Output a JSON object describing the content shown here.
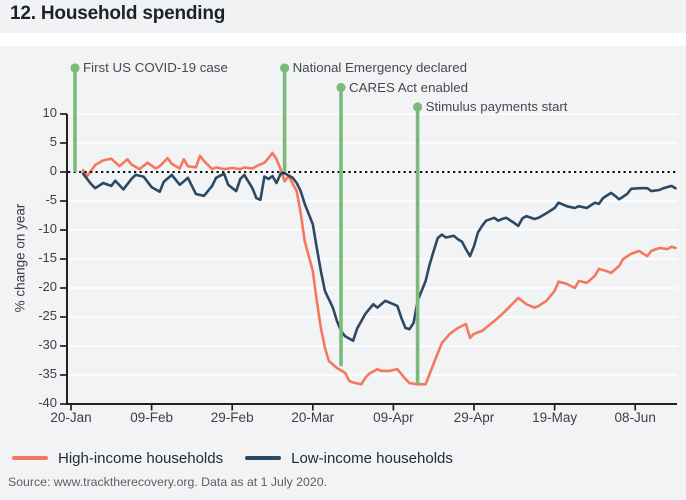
{
  "header": {
    "title": "12. Household spending"
  },
  "footer": {
    "source": "Source: www.tracktherecovery.org. Data as at 1 July 2020."
  },
  "legend": [
    {
      "label": "High-income households",
      "color": "#f4795c"
    },
    {
      "label": "Low-income households",
      "color": "#2c4964"
    }
  ],
  "chart_data": {
    "type": "line",
    "title": "12. Household spending",
    "xlabel": "",
    "ylabel": "% change on year",
    "ylim": [
      -40,
      12
    ],
    "grid": "horizontal-white-on-grey",
    "zero_line": "dotted-black",
    "legend_position": "bottom-left",
    "y_ticks": [
      10,
      5,
      0,
      -5,
      -10,
      -15,
      -20,
      -25,
      -30,
      -35,
      -40
    ],
    "x_axis": {
      "start_date": "2020-01-20",
      "end_day": 151,
      "ticks": [
        {
          "day": 0,
          "label": "20-Jan"
        },
        {
          "day": 20,
          "label": "09-Feb"
        },
        {
          "day": 40,
          "label": "29-Feb"
        },
        {
          "day": 60,
          "label": "20-Mar"
        },
        {
          "day": 80,
          "label": "09-Apr"
        },
        {
          "day": 100,
          "label": "29-Apr"
        },
        {
          "day": 120,
          "label": "19-May"
        },
        {
          "day": 140,
          "label": "08-Jun"
        }
      ]
    },
    "event_color": "#7cba7c",
    "events": [
      {
        "label": "First US COVID-19 case",
        "date": "2020-01-21",
        "row": 0,
        "end_value": 0
      },
      {
        "label": "National Emergency declared",
        "date": "2020-03-13",
        "row": 0,
        "end_value": 0
      },
      {
        "label": "CARES Act enabled",
        "date": "2020-03-27",
        "row": 1,
        "end_value": -33.5
      },
      {
        "label": "Stimulus payments start",
        "date": "2020-04-15",
        "row": 2,
        "end_value": -36.6
      }
    ],
    "series": [
      {
        "name": "High-income households",
        "color": "#f4795c",
        "points": [
          [
            3,
            0.3
          ],
          [
            4,
            -0.7
          ],
          [
            6,
            1.2
          ],
          [
            8,
            2.0
          ],
          [
            10,
            2.3
          ],
          [
            12,
            1.0
          ],
          [
            14,
            2.2
          ],
          [
            15,
            1.3
          ],
          [
            17,
            0.5
          ],
          [
            19,
            1.6
          ],
          [
            21,
            0.6
          ],
          [
            22,
            1.0
          ],
          [
            24,
            2.4
          ],
          [
            25,
            1.4
          ],
          [
            27,
            0.6
          ],
          [
            28,
            2.2
          ],
          [
            29,
            1.0
          ],
          [
            31,
            0.8
          ],
          [
            32,
            2.8
          ],
          [
            33,
            1.9
          ],
          [
            35,
            0.5
          ],
          [
            36,
            0.8
          ],
          [
            38,
            0.5
          ],
          [
            40,
            0.7
          ],
          [
            42,
            0.5
          ],
          [
            43,
            0.8
          ],
          [
            45,
            0.6
          ],
          [
            46,
            1.0
          ],
          [
            48,
            1.6
          ],
          [
            49,
            2.4
          ],
          [
            50,
            3.3
          ],
          [
            51,
            2.2
          ],
          [
            52,
            0.5
          ],
          [
            53,
            -1.6
          ],
          [
            54,
            -0.7
          ],
          [
            56,
            -3.3
          ],
          [
            57,
            -7.1
          ],
          [
            58,
            -11.9
          ],
          [
            60,
            -17.1
          ],
          [
            61,
            -22.2
          ],
          [
            62,
            -26.9
          ],
          [
            63,
            -30.3
          ],
          [
            64,
            -32.6
          ],
          [
            66,
            -33.8
          ],
          [
            68,
            -34.6
          ],
          [
            69,
            -36.0
          ],
          [
            70,
            -36.3
          ],
          [
            72,
            -36.6
          ],
          [
            73,
            -35.5
          ],
          [
            74,
            -34.8
          ],
          [
            76,
            -34.0
          ],
          [
            77,
            -34.3
          ],
          [
            79,
            -34.3
          ],
          [
            81,
            -34.0
          ],
          [
            83,
            -35.7
          ],
          [
            84,
            -36.4
          ],
          [
            86,
            -36.6
          ],
          [
            88,
            -36.6
          ],
          [
            90,
            -33.0
          ],
          [
            92,
            -29.5
          ],
          [
            94,
            -27.9
          ],
          [
            96,
            -26.9
          ],
          [
            98,
            -26.2
          ],
          [
            99,
            -28.6
          ],
          [
            100,
            -27.9
          ],
          [
            102,
            -27.4
          ],
          [
            105,
            -25.7
          ],
          [
            107,
            -24.5
          ],
          [
            109,
            -23.1
          ],
          [
            111,
            -21.7
          ],
          [
            113,
            -22.8
          ],
          [
            115,
            -23.4
          ],
          [
            116,
            -23.1
          ],
          [
            118,
            -22.2
          ],
          [
            120,
            -20.5
          ],
          [
            121,
            -18.9
          ],
          [
            123,
            -19.3
          ],
          [
            125,
            -20.0
          ],
          [
            126,
            -18.8
          ],
          [
            128,
            -19.1
          ],
          [
            130,
            -17.9
          ],
          [
            131,
            -16.7
          ],
          [
            133,
            -17.1
          ],
          [
            134,
            -17.4
          ],
          [
            136,
            -16.2
          ],
          [
            137,
            -15.0
          ],
          [
            139,
            -14.1
          ],
          [
            141,
            -13.6
          ],
          [
            142,
            -14.1
          ],
          [
            143,
            -14.5
          ],
          [
            144,
            -13.6
          ],
          [
            146,
            -13.1
          ],
          [
            148,
            -13.3
          ],
          [
            149,
            -12.9
          ],
          [
            150,
            -13.1
          ]
        ]
      },
      {
        "name": "Low-income households",
        "color": "#2c4964",
        "points": [
          [
            3,
            -0.3
          ],
          [
            5,
            -2.1
          ],
          [
            6,
            -2.8
          ],
          [
            8,
            -1.9
          ],
          [
            10,
            -2.4
          ],
          [
            11,
            -1.5
          ],
          [
            13,
            -3.0
          ],
          [
            15,
            -1.2
          ],
          [
            16,
            -0.5
          ],
          [
            18,
            -0.8
          ],
          [
            20,
            -2.6
          ],
          [
            22,
            -3.4
          ],
          [
            23,
            -1.7
          ],
          [
            25,
            -0.5
          ],
          [
            27,
            -2.2
          ],
          [
            29,
            -1.0
          ],
          [
            31,
            -3.8
          ],
          [
            33,
            -4.1
          ],
          [
            35,
            -2.4
          ],
          [
            36,
            -1.0
          ],
          [
            38,
            -0.3
          ],
          [
            39,
            -2.2
          ],
          [
            41,
            -3.3
          ],
          [
            42,
            -1.2
          ],
          [
            43,
            -0.5
          ],
          [
            45,
            -2.8
          ],
          [
            46,
            -4.5
          ],
          [
            47,
            -4.8
          ],
          [
            48,
            -0.8
          ],
          [
            49,
            -1.2
          ],
          [
            50,
            -0.7
          ],
          [
            51,
            -1.9
          ],
          [
            52,
            -0.3
          ],
          [
            53,
            -0.2
          ],
          [
            55,
            -1.0
          ],
          [
            56,
            -1.9
          ],
          [
            57,
            -3.3
          ],
          [
            58,
            -5.5
          ],
          [
            60,
            -9.0
          ],
          [
            61,
            -13.1
          ],
          [
            62,
            -17.1
          ],
          [
            63,
            -20.5
          ],
          [
            65,
            -23.4
          ],
          [
            66,
            -25.7
          ],
          [
            67,
            -27.4
          ],
          [
            68,
            -28.3
          ],
          [
            70,
            -29.1
          ],
          [
            71,
            -27.0
          ],
          [
            73,
            -24.5
          ],
          [
            75,
            -22.8
          ],
          [
            76,
            -23.4
          ],
          [
            78,
            -22.2
          ],
          [
            80,
            -22.8
          ],
          [
            81,
            -23.1
          ],
          [
            82,
            -25.2
          ],
          [
            83,
            -26.9
          ],
          [
            84,
            -27.1
          ],
          [
            85,
            -26.0
          ],
          [
            86,
            -22.2
          ],
          [
            88,
            -18.8
          ],
          [
            89,
            -15.9
          ],
          [
            90,
            -13.6
          ],
          [
            91,
            -11.4
          ],
          [
            92,
            -10.8
          ],
          [
            93,
            -11.3
          ],
          [
            95,
            -11.0
          ],
          [
            96,
            -11.6
          ],
          [
            97,
            -12.0
          ],
          [
            98,
            -13.3
          ],
          [
            99,
            -14.5
          ],
          [
            100,
            -12.8
          ],
          [
            101,
            -10.4
          ],
          [
            102,
            -9.3
          ],
          [
            103,
            -8.4
          ],
          [
            105,
            -7.9
          ],
          [
            106,
            -8.4
          ],
          [
            107,
            -8.1
          ],
          [
            108,
            -7.9
          ],
          [
            110,
            -8.8
          ],
          [
            111,
            -9.3
          ],
          [
            112,
            -8.0
          ],
          [
            113,
            -7.6
          ],
          [
            115,
            -8.1
          ],
          [
            116,
            -7.9
          ],
          [
            118,
            -7.1
          ],
          [
            120,
            -6.2
          ],
          [
            121,
            -5.3
          ],
          [
            123,
            -5.9
          ],
          [
            125,
            -6.2
          ],
          [
            126,
            -5.9
          ],
          [
            128,
            -6.2
          ],
          [
            130,
            -5.3
          ],
          [
            131,
            -5.5
          ],
          [
            132,
            -4.5
          ],
          [
            134,
            -3.6
          ],
          [
            135,
            -4.1
          ],
          [
            136,
            -4.7
          ],
          [
            138,
            -3.8
          ],
          [
            139,
            -2.9
          ],
          [
            141,
            -2.8
          ],
          [
            143,
            -2.8
          ],
          [
            144,
            -3.3
          ],
          [
            146,
            -3.1
          ],
          [
            147,
            -2.8
          ],
          [
            149,
            -2.4
          ],
          [
            150,
            -2.8
          ]
        ]
      }
    ]
  }
}
